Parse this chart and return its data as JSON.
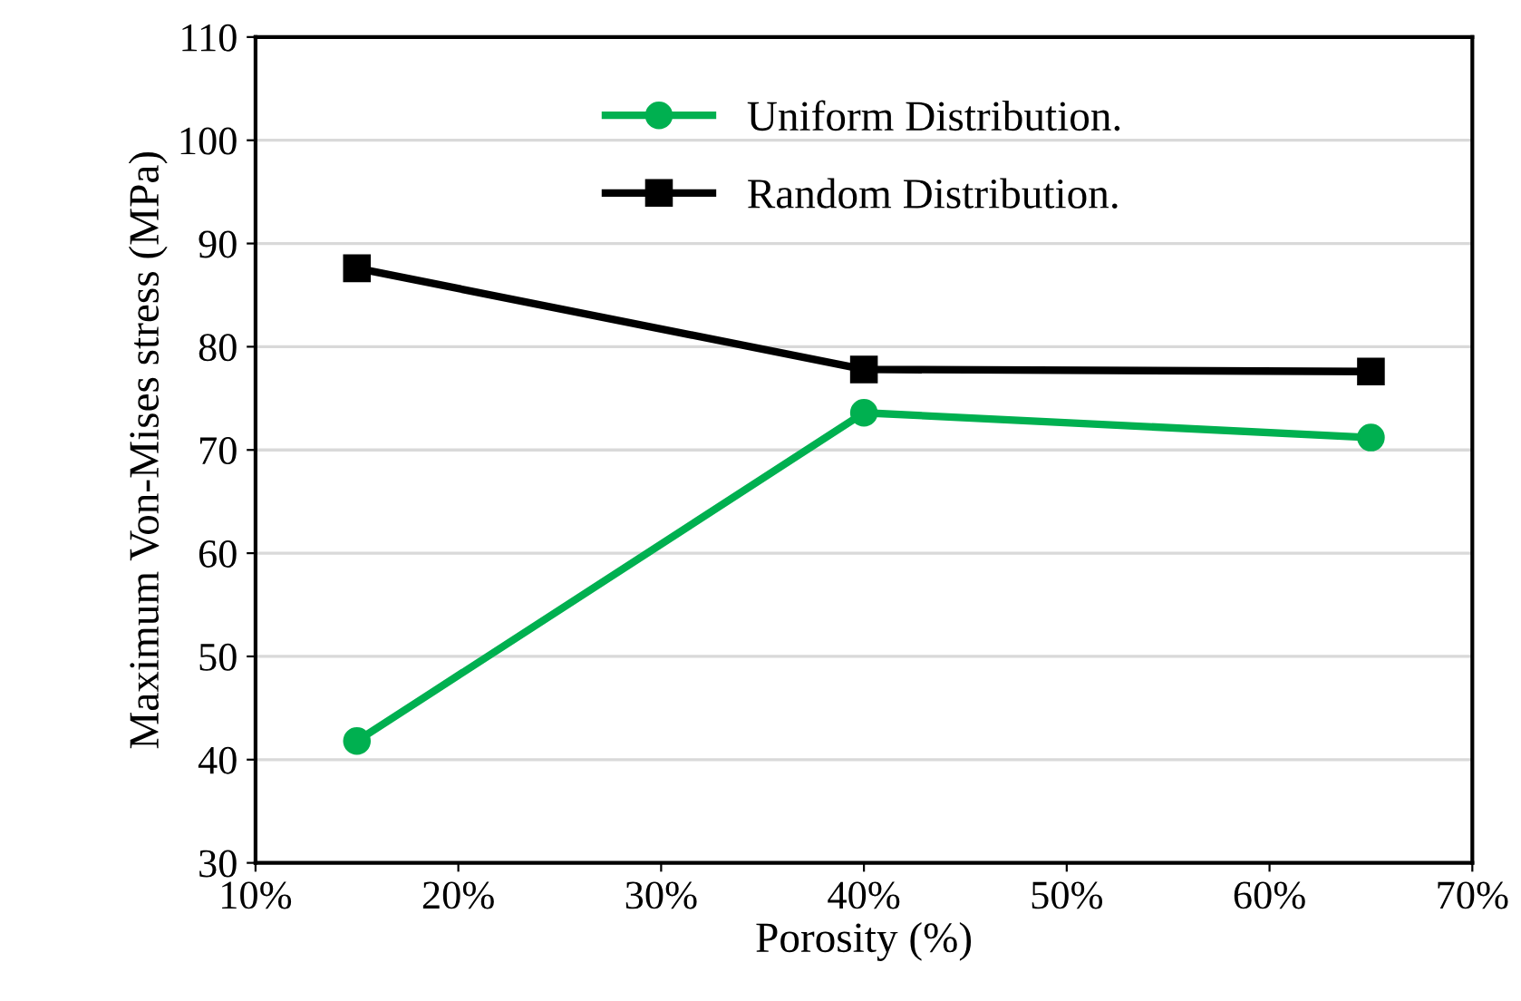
{
  "chart_data": {
    "type": "line",
    "xlabel": "Porosity (%)",
    "ylabel": "Maximum Von-Mises stress (MPa)",
    "x": [
      15,
      40,
      65
    ],
    "series": [
      {
        "name": "Uniform Distribution.",
        "color": "#00b050",
        "marker": "circle",
        "values": [
          41.8,
          73.6,
          71.2
        ]
      },
      {
        "name": "Random Distribution.",
        "color": "#000000",
        "marker": "square",
        "values": [
          87.6,
          77.8,
          77.6
        ]
      }
    ],
    "xlim": [
      10,
      70
    ],
    "xticks": [
      {
        "value": 10,
        "label": "10%"
      },
      {
        "value": 20,
        "label": "20%"
      },
      {
        "value": 30,
        "label": "30%"
      },
      {
        "value": 40,
        "label": "40%"
      },
      {
        "value": 50,
        "label": "50%"
      },
      {
        "value": 60,
        "label": "60%"
      },
      {
        "value": 70,
        "label": "70%"
      }
    ],
    "ylim": [
      30,
      110
    ],
    "yticks": [
      30,
      40,
      50,
      60,
      70,
      80,
      90,
      100,
      110
    ],
    "grid": "y",
    "legend": "top",
    "line_style": "solid"
  }
}
